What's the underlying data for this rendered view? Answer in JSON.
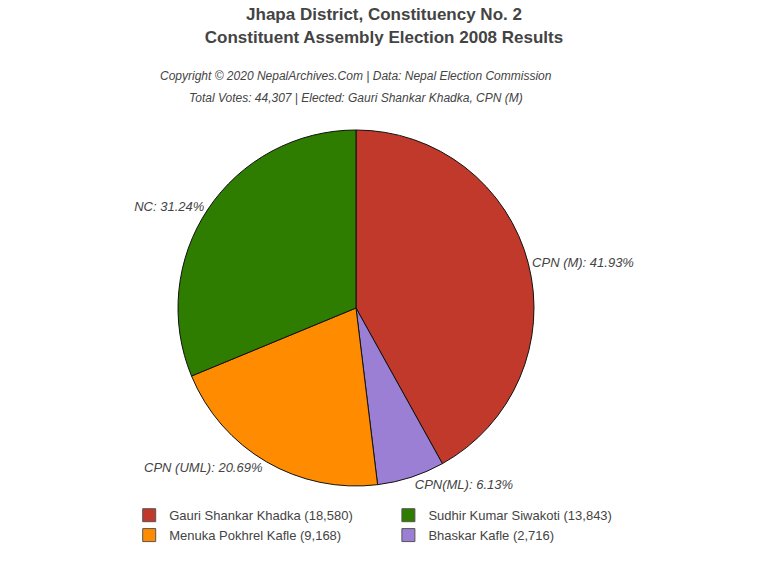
{
  "chart_data": {
    "type": "pie",
    "title": "Jhapa District, Constituency No. 2",
    "subtitle": "Constituent Assembly Election 2008 Results",
    "annotations": [
      "Copyright © 2020 NepalArchives.Com | Data: Nepal Election Commission",
      "Total Votes: 44,307 | Elected: Gauri Shankar Khadka, CPN (M)"
    ],
    "categories": [
      "CPN (M)",
      "CPN(ML)",
      "CPN (UML)",
      "NC"
    ],
    "values": [
      41.93,
      6.13,
      20.69,
      31.24
    ],
    "value_labels": [
      "CPN (M): 41.93%",
      "CPN(ML): 6.13%",
      "CPN (UML): 20.69%",
      "NC: 31.24%"
    ],
    "colors": [
      "#C0392B",
      "#9B7FD4",
      "#FF8C00",
      "#2E7D00"
    ],
    "data_labels": true,
    "legend": "bottom",
    "legend_entries": [
      {
        "name": "Gauri Shankar Khadka (18,580)",
        "color": "#C0392B"
      },
      {
        "name": "Sudhir Kumar Siwakoti (13,843)",
        "color": "#2E7D00"
      },
      {
        "name": "Menuka Pokhrel Kafle (9,168)",
        "color": "#FF8C00"
      },
      {
        "name": "Bhaskar Kafle (2,716)",
        "color": "#9B7FD4"
      }
    ]
  }
}
